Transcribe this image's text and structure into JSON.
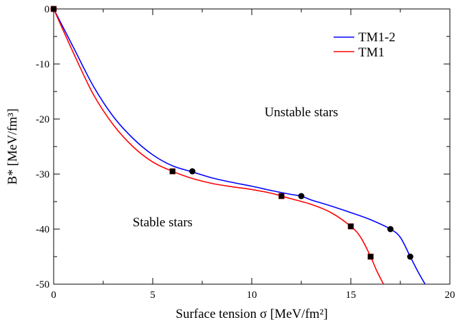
{
  "chart_data": {
    "type": "line",
    "xlabel": "Surface tension σ [MeV/fm²]",
    "ylabel": "B* [MeV/fm³]",
    "xlim": [
      0,
      20
    ],
    "ylim": [
      -50,
      0
    ],
    "x_ticks": [
      "0",
      "5",
      "10",
      "15",
      "20"
    ],
    "y_ticks": [
      "0",
      "-10",
      "-20",
      "-30",
      "-40",
      "-50"
    ],
    "x_tick_values": [
      0,
      5,
      10,
      15,
      20
    ],
    "y_tick_values": [
      0,
      -10,
      -20,
      -30,
      -40,
      -50
    ],
    "grid": false,
    "legend_position": "top-right",
    "series": [
      {
        "name": "TM1-2",
        "color": "#0000ff",
        "marker": "circle",
        "curve": [
          [
            0,
            0
          ],
          [
            1,
            -7
          ],
          [
            2,
            -14
          ],
          [
            3,
            -19.5
          ],
          [
            4,
            -23.5
          ],
          [
            5,
            -26.5
          ],
          [
            6,
            -28.5
          ],
          [
            7,
            -29.6
          ],
          [
            8,
            -30.7
          ],
          [
            9,
            -31.5
          ],
          [
            10,
            -32.2
          ],
          [
            11,
            -33
          ],
          [
            12,
            -33.7
          ],
          [
            12.5,
            -34
          ],
          [
            13,
            -34.7
          ],
          [
            14,
            -35.8
          ],
          [
            15,
            -37
          ],
          [
            16,
            -38.3
          ],
          [
            17,
            -40
          ],
          [
            17.5,
            -41.5
          ],
          [
            18,
            -45
          ],
          [
            18.4,
            -47.8
          ],
          [
            18.75,
            -50
          ]
        ],
        "markers": [
          [
            0,
            0
          ],
          [
            7,
            -29.5
          ],
          [
            12.5,
            -34
          ],
          [
            17,
            -40
          ],
          [
            18,
            -45
          ]
        ]
      },
      {
        "name": "TM1",
        "color": "#ff0000",
        "marker": "square",
        "curve": [
          [
            0,
            0
          ],
          [
            1,
            -8
          ],
          [
            2,
            -15.5
          ],
          [
            3,
            -21
          ],
          [
            4,
            -25
          ],
          [
            5,
            -27.8
          ],
          [
            6,
            -29.5
          ],
          [
            7,
            -30.8
          ],
          [
            8,
            -31.7
          ],
          [
            9,
            -32.3
          ],
          [
            10,
            -32.8
          ],
          [
            11,
            -33.5
          ],
          [
            11.5,
            -34
          ],
          [
            12,
            -34.5
          ],
          [
            13,
            -35.5
          ],
          [
            14,
            -37
          ],
          [
            15,
            -39.5
          ],
          [
            15.5,
            -41.5
          ],
          [
            16,
            -45
          ],
          [
            16.3,
            -47.5
          ],
          [
            16.65,
            -50
          ]
        ],
        "markers": [
          [
            0,
            0
          ],
          [
            6,
            -29.5
          ],
          [
            11.5,
            -34
          ],
          [
            15,
            -39.5
          ],
          [
            16,
            -45
          ]
        ]
      }
    ],
    "annotations": [
      {
        "text": "Unstable stars",
        "x": 12.5,
        "y": -19.5
      },
      {
        "text": "Stable stars",
        "x": 5.5,
        "y": -39.5
      }
    ]
  }
}
